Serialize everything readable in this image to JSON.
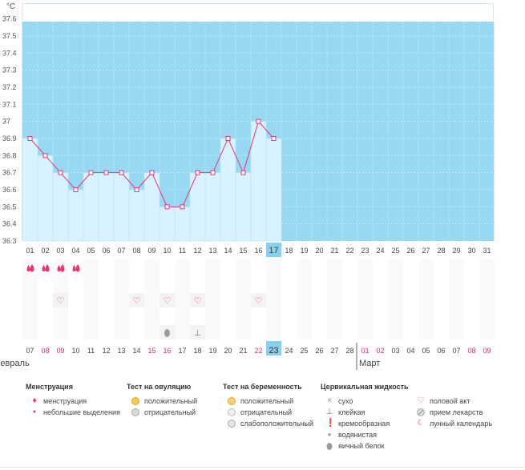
{
  "unit": "°C",
  "colors": {
    "band": "#97d9f3",
    "bar": "#d8f2ff",
    "line": "#e8357a",
    "today": "#89cfee",
    "pink": "#e8357a"
  },
  "chart_data": {
    "type": "line",
    "title": "",
    "ylabel": "°C",
    "ylim": [
      36.3,
      37.6
    ],
    "yticks": [
      "36.3",
      "36.4",
      "36.5",
      "36.6",
      "36.7",
      "36.8",
      "36.9",
      "37",
      "37.1",
      "37.2",
      "37.3",
      "37.4",
      "37.5",
      "37.6"
    ],
    "cycle_days": [
      "01",
      "02",
      "03",
      "04",
      "05",
      "06",
      "07",
      "08",
      "09",
      "10",
      "11",
      "12",
      "13",
      "14",
      "15",
      "16",
      "17",
      "18",
      "19",
      "20",
      "21",
      "22",
      "23",
      "24",
      "25",
      "26",
      "27",
      "28",
      "29",
      "30",
      "31"
    ],
    "today_index": 16,
    "temperatures": [
      36.9,
      36.8,
      36.7,
      36.6,
      36.7,
      36.7,
      36.7,
      36.6,
      36.7,
      36.5,
      36.5,
      36.7,
      36.7,
      36.9,
      36.7,
      37.0,
      36.9
    ],
    "dates": [
      "07",
      "08",
      "09",
      "10",
      "11",
      "12",
      "13",
      "14",
      "15",
      "16",
      "17",
      "18",
      "19",
      "20",
      "21",
      "22",
      "23",
      "24",
      "25",
      "26",
      "27",
      "28",
      "01",
      "02",
      "03",
      "04",
      "05",
      "06",
      "07",
      "08",
      "09"
    ],
    "date_highlight": [
      false,
      true,
      true,
      false,
      false,
      false,
      false,
      false,
      true,
      true,
      false,
      false,
      false,
      false,
      false,
      true,
      false,
      false,
      false,
      false,
      false,
      false,
      true,
      true,
      false,
      false,
      false,
      false,
      false,
      true,
      true
    ],
    "months": [
      {
        "label": "Февраль",
        "start": 0
      },
      {
        "label": "Март",
        "start": 22
      }
    ],
    "symbols": {
      "menstruation": [
        0,
        1,
        2,
        3
      ],
      "intercourse": [
        2,
        7,
        9,
        11,
        15
      ],
      "cervical_fluid": [
        {
          "day": 9,
          "type": "egg-white"
        },
        {
          "day": 11,
          "type": "sticky"
        }
      ]
    }
  },
  "legend": {
    "menstruation": {
      "title": "Менструация",
      "items": [
        "менструация",
        "небольшие выделения"
      ]
    },
    "ovulation": {
      "title": "Тест на овуляцию",
      "items": [
        "положительный",
        "отрицательный"
      ]
    },
    "pregnancy": {
      "title": "Тест на беременность",
      "items": [
        "положительный",
        "отрицательный",
        "слабоположительный"
      ]
    },
    "cervical": {
      "title": "Цервикальная жидкость",
      "items": [
        "сухо",
        "клейкая",
        "кремообразная",
        "водянистая",
        "яичный белок"
      ]
    },
    "other": {
      "items": [
        "половой акт",
        "прием лекарств",
        "лунный календарь"
      ]
    }
  }
}
